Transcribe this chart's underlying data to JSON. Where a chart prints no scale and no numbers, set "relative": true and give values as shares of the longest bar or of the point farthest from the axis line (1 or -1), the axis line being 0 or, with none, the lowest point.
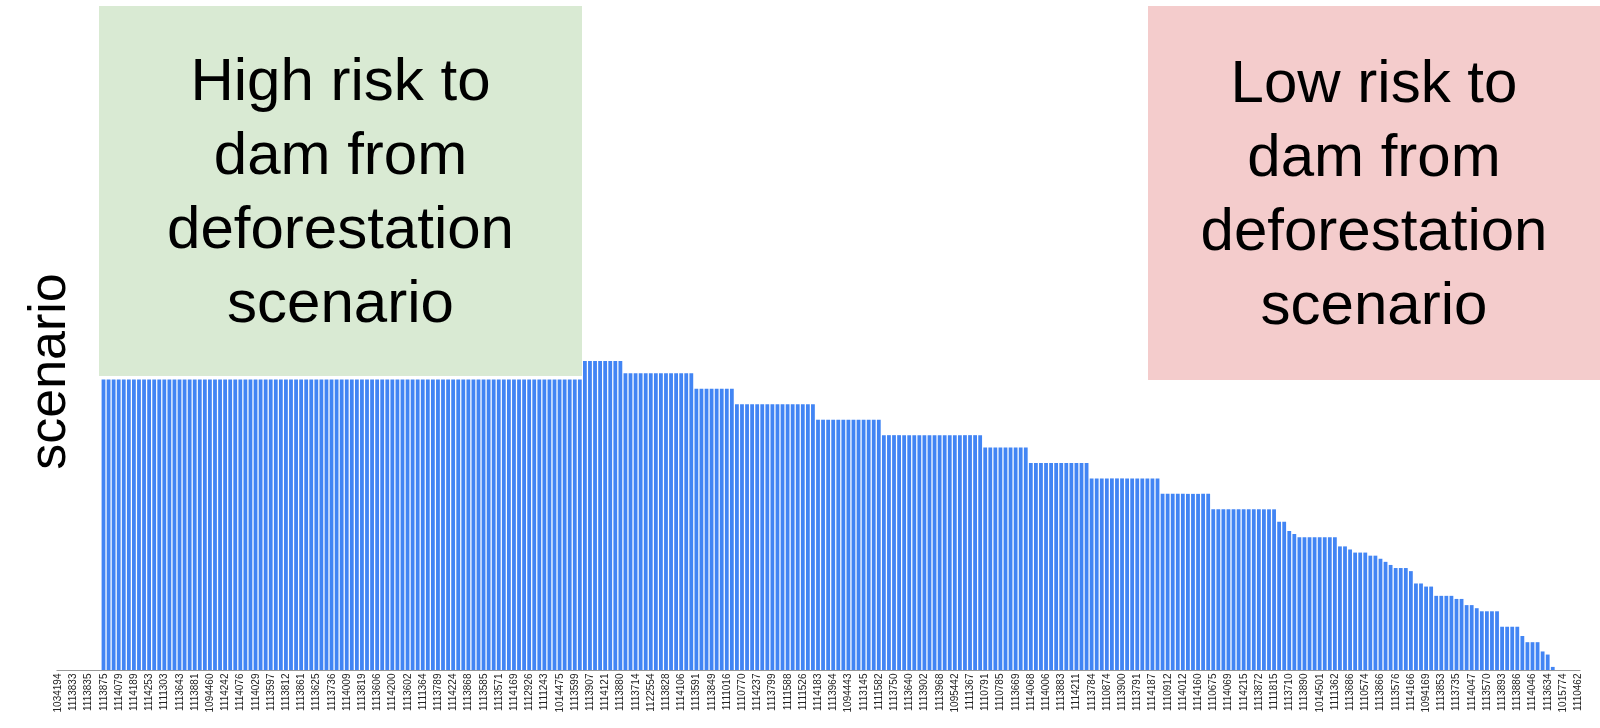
{
  "chart_data": {
    "type": "bar",
    "relative": true,
    "ylabel": "scenario",
    "color": "#4285f4",
    "annotations": [
      "High risk to dam from deforestation scenario",
      "Low risk to dam from deforestation scenario"
    ],
    "categories": [
      "1034194",
      null,
      null,
      "1113833",
      null,
      null,
      "1113835",
      null,
      null,
      "1113875",
      null,
      null,
      "1114079",
      null,
      null,
      "1114189",
      null,
      null,
      "1114253",
      null,
      null,
      "1111303",
      null,
      null,
      "1113643",
      null,
      null,
      "1113881",
      null,
      null,
      "1094460",
      null,
      null,
      "1114242",
      null,
      null,
      "1114076",
      null,
      null,
      "1114029",
      null,
      null,
      "1113597",
      null,
      null,
      "1113812",
      null,
      null,
      "1113861",
      null,
      null,
      "1113625",
      null,
      null,
      "1113736",
      null,
      null,
      "1114009",
      null,
      null,
      "1113819",
      null,
      null,
      "1113606",
      null,
      null,
      "1114200",
      null,
      null,
      "1113602",
      null,
      null,
      "1111364",
      null,
      null,
      "1113789",
      null,
      null,
      "1114224",
      null,
      null,
      "1113868",
      null,
      null,
      "1113585",
      null,
      null,
      "1113571",
      null,
      null,
      "1114169",
      null,
      null,
      "1112926",
      null,
      null,
      "1111243",
      null,
      null,
      "1014475",
      null,
      null,
      "1113599",
      null,
      null,
      "1113907",
      null,
      null,
      "1114121",
      null,
      null,
      "1113880",
      null,
      null,
      "1113714",
      null,
      null,
      "1122554",
      null,
      null,
      "1113828",
      null,
      null,
      "1114106",
      null,
      null,
      "1113591",
      null,
      null,
      "1113849",
      null,
      null,
      "1111016",
      null,
      null,
      "1110770",
      null,
      null,
      "1114237",
      null,
      null,
      "1113799",
      null,
      null,
      "1111588",
      null,
      null,
      "1111526",
      null,
      null,
      "1114183",
      null,
      null,
      "1113964",
      null,
      null,
      "1094443",
      null,
      null,
      "1113145",
      null,
      null,
      "1111582",
      null,
      null,
      "1113750",
      null,
      null,
      "1113640",
      null,
      null,
      "1113902",
      null,
      null,
      "1113968",
      null,
      null,
      "1095442",
      null,
      null,
      "1111367",
      null,
      null,
      "1110791",
      null,
      null,
      "1110785",
      null,
      null,
      "1113669",
      null,
      null,
      "1114068",
      null,
      null,
      "1114006",
      null,
      null,
      "1113883",
      null,
      null,
      "1114211",
      null,
      null,
      "1113784",
      null,
      null,
      "1110874",
      null,
      null,
      "1113900",
      null,
      null,
      "1113791",
      null,
      null,
      "1114187",
      null,
      null,
      "1110912",
      null,
      null,
      "1114012",
      null,
      null,
      "1114160",
      null,
      null,
      "1110675",
      null,
      null,
      "1114069",
      null,
      null,
      "1114215",
      null,
      null,
      "1113872",
      null,
      null,
      "1111815",
      null,
      null,
      "1113710",
      null,
      null,
      "1113890",
      null,
      null,
      "1014501",
      null,
      null,
      "1111362",
      null,
      null,
      "1113686",
      null,
      null,
      "1110574",
      null,
      null,
      "1113866",
      null,
      null,
      "1113576",
      null,
      null,
      "1114166",
      null,
      null,
      "1094169",
      null,
      null,
      "1113853",
      null,
      null,
      "1113735",
      null,
      null,
      "1114047",
      null,
      null,
      "1113570",
      null,
      null,
      "1113893",
      null,
      null,
      "1113886",
      null,
      null,
      "1114046",
      null,
      null,
      "1113634",
      null,
      null,
      "1015774",
      null,
      null,
      "1110462"
    ],
    "values": [
      0,
      0,
      0,
      0,
      0,
      0,
      0,
      0,
      0,
      0.94,
      0.94,
      0.94,
      0.94,
      0.94,
      0.94,
      0.94,
      0.94,
      0.94,
      0.94,
      0.94,
      0.94,
      0.94,
      0.94,
      0.94,
      0.94,
      0.94,
      0.94,
      0.94,
      0.94,
      0.94,
      0.94,
      0.94,
      0.94,
      0.94,
      0.94,
      0.94,
      0.94,
      0.94,
      0.94,
      0.94,
      0.94,
      0.94,
      0.94,
      0.94,
      0.94,
      0.94,
      0.94,
      0.94,
      0.94,
      0.94,
      0.94,
      0.94,
      0.94,
      0.94,
      0.94,
      0.94,
      0.94,
      0.94,
      0.94,
      0.94,
      0.94,
      0.94,
      0.94,
      0.94,
      0.94,
      0.94,
      0.94,
      0.94,
      0.94,
      0.94,
      0.94,
      0.94,
      0.94,
      0.94,
      0.94,
      0.94,
      0.94,
      0.94,
      0.94,
      0.94,
      0.94,
      0.94,
      0.94,
      0.94,
      0.94,
      0.94,
      0.94,
      0.94,
      0.94,
      0.94,
      0.94,
      0.94,
      0.94,
      0.94,
      0.94,
      0.94,
      0.94,
      0.94,
      0.94,
      0.94,
      0.94,
      0.94,
      0.94,
      0.94,
      1,
      1,
      1,
      1,
      1,
      1,
      1,
      1,
      0.96,
      0.96,
      0.96,
      0.96,
      0.96,
      0.96,
      0.96,
      0.96,
      0.96,
      0.96,
      0.96,
      0.96,
      0.96,
      0.96,
      0.91,
      0.91,
      0.91,
      0.91,
      0.91,
      0.91,
      0.91,
      0.91,
      0.86,
      0.86,
      0.86,
      0.86,
      0.86,
      0.86,
      0.86,
      0.86,
      0.86,
      0.86,
      0.86,
      0.86,
      0.86,
      0.86,
      0.86,
      0.86,
      0.81,
      0.81,
      0.81,
      0.81,
      0.81,
      0.81,
      0.81,
      0.81,
      0.81,
      0.81,
      0.81,
      0.81,
      0.81,
      0.76,
      0.76,
      0.76,
      0.76,
      0.76,
      0.76,
      0.76,
      0.76,
      0.76,
      0.76,
      0.76,
      0.76,
      0.76,
      0.76,
      0.76,
      0.76,
      0.76,
      0.76,
      0.76,
      0.76,
      0.72,
      0.72,
      0.72,
      0.72,
      0.72,
      0.72,
      0.72,
      0.72,
      0.72,
      0.67,
      0.67,
      0.67,
      0.67,
      0.67,
      0.67,
      0.67,
      0.67,
      0.67,
      0.67,
      0.67,
      0.67,
      0.62,
      0.62,
      0.62,
      0.62,
      0.62,
      0.62,
      0.62,
      0.62,
      0.62,
      0.62,
      0.62,
      0.62,
      0.62,
      0.62,
      0.57,
      0.57,
      0.57,
      0.57,
      0.57,
      0.57,
      0.57,
      0.57,
      0.57,
      0.57,
      0.52,
      0.52,
      0.52,
      0.52,
      0.52,
      0.52,
      0.52,
      0.52,
      0.52,
      0.52,
      0.52,
      0.52,
      0.52,
      0.48,
      0.48,
      0.45,
      0.44,
      0.43,
      0.43,
      0.43,
      0.43,
      0.43,
      0.43,
      0.43,
      0.43,
      0.4,
      0.4,
      0.39,
      0.38,
      0.38,
      0.38,
      0.37,
      0.37,
      0.36,
      0.35,
      0.34,
      0.33,
      0.33,
      0.33,
      0.32,
      0.28,
      0.28,
      0.27,
      0.27,
      0.24,
      0.24,
      0.24,
      0.24,
      0.23,
      0.23,
      0.21,
      0.21,
      0.2,
      0.19,
      0.19,
      0.19,
      0.19,
      0.14,
      0.14,
      0.14,
      0.14,
      0.11,
      0.09,
      0.09,
      0.09,
      0.06,
      0.05,
      0.01,
      0,
      0,
      0,
      0,
      0
    ]
  }
}
